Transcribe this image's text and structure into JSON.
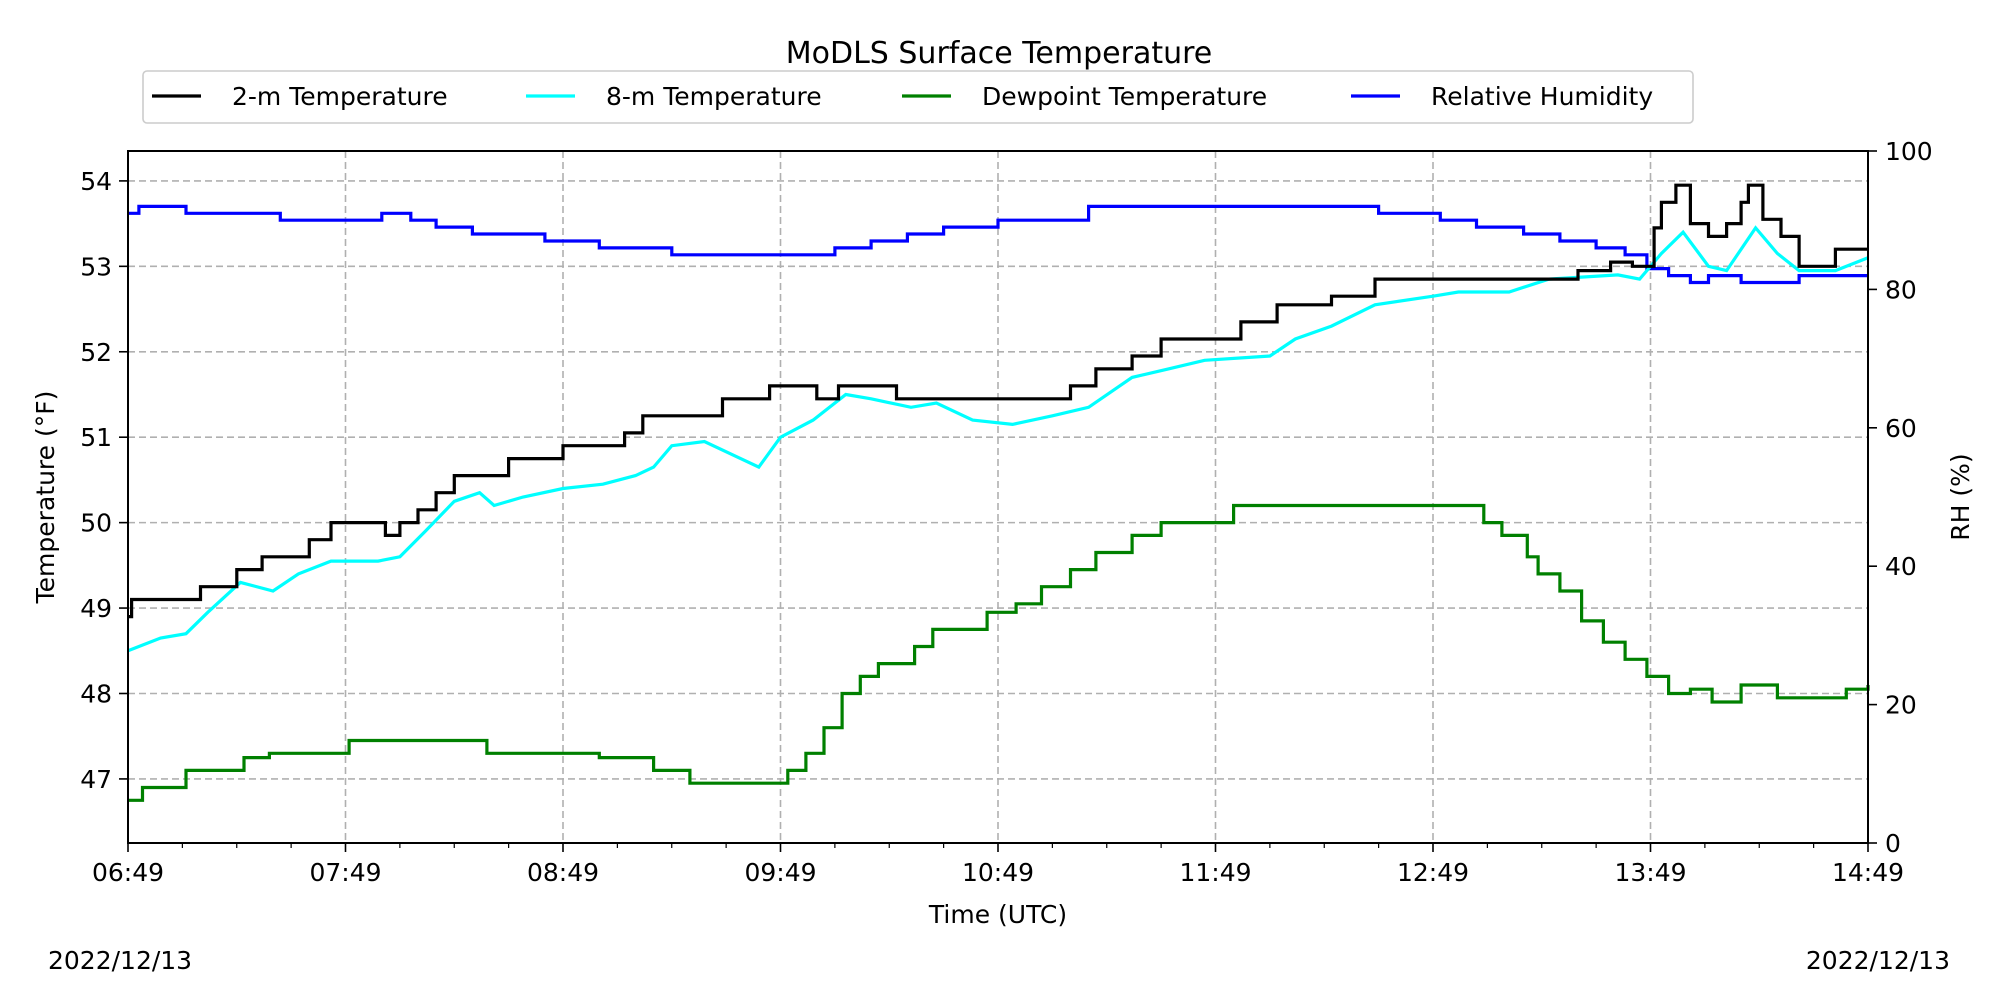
{
  "chart_data": {
    "type": "line",
    "title": "MoDLS Surface Temperature",
    "xlabel": "Time (UTC)",
    "ylabel_left": "Temperature (°F)",
    "ylabel_right": "RH (%)",
    "date_left": "2022/12/13",
    "date_right": "2022/12/13",
    "x_ticks": [
      "06:49",
      "07:49",
      "08:49",
      "09:49",
      "10:49",
      "11:49",
      "12:49",
      "13:49",
      "14:49"
    ],
    "ylim_left": [
      46.25,
      54.35
    ],
    "yticks_left": [
      47,
      48,
      49,
      50,
      51,
      52,
      53,
      54
    ],
    "ylim_right": [
      0,
      100
    ],
    "yticks_right": [
      0,
      20,
      40,
      60,
      80,
      100
    ],
    "grid": true,
    "legend_position": "top",
    "series": [
      {
        "name": "2-m Temperature",
        "axis": "left",
        "color": "#000000",
        "step": true,
        "points": [
          [
            "06:49",
            48.9
          ],
          [
            "06:50",
            49.1
          ],
          [
            "07:09",
            49.25
          ],
          [
            "07:19",
            49.45
          ],
          [
            "07:26",
            49.6
          ],
          [
            "07:39",
            49.8
          ],
          [
            "07:45",
            50.0
          ],
          [
            "08:00",
            49.85
          ],
          [
            "08:04",
            50.0
          ],
          [
            "08:09",
            50.15
          ],
          [
            "08:14",
            50.35
          ],
          [
            "08:19",
            50.55
          ],
          [
            "08:34",
            50.75
          ],
          [
            "08:49",
            50.9
          ],
          [
            "09:06",
            51.05
          ],
          [
            "09:11",
            51.25
          ],
          [
            "09:33",
            51.45
          ],
          [
            "09:46",
            51.6
          ],
          [
            "09:59",
            51.45
          ],
          [
            "10:05",
            51.6
          ],
          [
            "10:21",
            51.45
          ],
          [
            "11:09",
            51.6
          ],
          [
            "11:16",
            51.8
          ],
          [
            "11:26",
            51.95
          ],
          [
            "11:34",
            52.15
          ],
          [
            "11:56",
            52.35
          ],
          [
            "12:06",
            52.55
          ],
          [
            "12:21",
            52.65
          ],
          [
            "12:33",
            52.85
          ],
          [
            "12:46",
            52.85
          ],
          [
            "13:29",
            52.95
          ],
          [
            "13:38",
            53.05
          ],
          [
            "13:44",
            53.0
          ],
          [
            "13:50",
            53.45
          ],
          [
            "13:52",
            53.75
          ],
          [
            "13:56",
            53.95
          ],
          [
            "14:00",
            53.5
          ],
          [
            "14:05",
            53.35
          ],
          [
            "14:10",
            53.5
          ],
          [
            "14:14",
            53.75
          ],
          [
            "14:16",
            53.95
          ],
          [
            "14:20",
            53.55
          ],
          [
            "14:25",
            53.35
          ],
          [
            "14:30",
            53.0
          ],
          [
            "14:40",
            53.2
          ],
          [
            "14:49",
            53.2
          ]
        ]
      },
      {
        "name": "8-m Temperature",
        "axis": "left",
        "color": "#00ffff",
        "step": false,
        "points": [
          [
            "06:49",
            48.5
          ],
          [
            "06:58",
            48.65
          ],
          [
            "07:05",
            48.7
          ],
          [
            "07:11",
            48.95
          ],
          [
            "07:20",
            49.3
          ],
          [
            "07:29",
            49.2
          ],
          [
            "07:36",
            49.4
          ],
          [
            "07:45",
            49.55
          ],
          [
            "07:58",
            49.55
          ],
          [
            "08:04",
            49.6
          ],
          [
            "08:11",
            49.9
          ],
          [
            "08:19",
            50.25
          ],
          [
            "08:26",
            50.35
          ],
          [
            "08:30",
            50.2
          ],
          [
            "08:38",
            50.3
          ],
          [
            "08:49",
            50.4
          ],
          [
            "09:00",
            50.45
          ],
          [
            "09:09",
            50.55
          ],
          [
            "09:14",
            50.65
          ],
          [
            "09:19",
            50.9
          ],
          [
            "09:28",
            50.95
          ],
          [
            "09:38",
            50.75
          ],
          [
            "09:43",
            50.65
          ],
          [
            "09:49",
            51.0
          ],
          [
            "09:58",
            51.2
          ],
          [
            "10:07",
            51.5
          ],
          [
            "10:14",
            51.45
          ],
          [
            "10:25",
            51.35
          ],
          [
            "10:32",
            51.4
          ],
          [
            "10:42",
            51.2
          ],
          [
            "10:53",
            51.15
          ],
          [
            "11:04",
            51.25
          ],
          [
            "11:14",
            51.35
          ],
          [
            "11:26",
            51.7
          ],
          [
            "11:36",
            51.8
          ],
          [
            "11:46",
            51.9
          ],
          [
            "12:04",
            51.95
          ],
          [
            "12:11",
            52.15
          ],
          [
            "12:21",
            52.3
          ],
          [
            "12:33",
            52.55
          ],
          [
            "12:49",
            52.65
          ],
          [
            "12:56",
            52.7
          ],
          [
            "13:10",
            52.7
          ],
          [
            "13:21",
            52.85
          ],
          [
            "13:40",
            52.9
          ],
          [
            "13:46",
            52.85
          ],
          [
            "13:52",
            53.15
          ],
          [
            "13:58",
            53.4
          ],
          [
            "14:05",
            53.0
          ],
          [
            "14:10",
            52.95
          ],
          [
            "14:18",
            53.45
          ],
          [
            "14:24",
            53.15
          ],
          [
            "14:30",
            52.95
          ],
          [
            "14:40",
            52.95
          ],
          [
            "14:49",
            53.1
          ]
        ]
      },
      {
        "name": "Dewpoint Temperature",
        "axis": "left",
        "color": "#008000",
        "step": true,
        "points": [
          [
            "06:49",
            46.75
          ],
          [
            "06:53",
            46.9
          ],
          [
            "07:05",
            47.1
          ],
          [
            "07:15",
            47.1
          ],
          [
            "07:21",
            47.25
          ],
          [
            "07:28",
            47.3
          ],
          [
            "07:50",
            47.45
          ],
          [
            "08:14",
            47.45
          ],
          [
            "08:28",
            47.3
          ],
          [
            "08:59",
            47.25
          ],
          [
            "09:14",
            47.1
          ],
          [
            "09:24",
            46.95
          ],
          [
            "09:36",
            46.95
          ],
          [
            "09:51",
            47.1
          ],
          [
            "09:56",
            47.3
          ],
          [
            "10:01",
            47.6
          ],
          [
            "10:06",
            48.0
          ],
          [
            "10:11",
            48.2
          ],
          [
            "10:16",
            48.35
          ],
          [
            "10:26",
            48.55
          ],
          [
            "10:31",
            48.75
          ],
          [
            "10:42",
            48.75
          ],
          [
            "10:46",
            48.95
          ],
          [
            "10:54",
            49.05
          ],
          [
            "11:01",
            49.25
          ],
          [
            "11:09",
            49.45
          ],
          [
            "11:16",
            49.65
          ],
          [
            "11:26",
            49.85
          ],
          [
            "11:34",
            50.0
          ],
          [
            "11:46",
            50.0
          ],
          [
            "11:54",
            50.2
          ],
          [
            "12:11",
            50.2
          ],
          [
            "12:59",
            50.2
          ],
          [
            "13:03",
            50.0
          ],
          [
            "13:08",
            49.85
          ],
          [
            "13:15",
            49.6
          ],
          [
            "13:18",
            49.4
          ],
          [
            "13:24",
            49.2
          ],
          [
            "13:30",
            48.85
          ],
          [
            "13:36",
            48.6
          ],
          [
            "13:42",
            48.4
          ],
          [
            "13:48",
            48.2
          ],
          [
            "13:54",
            48.0
          ],
          [
            "14:00",
            48.05
          ],
          [
            "14:06",
            47.9
          ],
          [
            "14:14",
            48.1
          ],
          [
            "14:24",
            47.95
          ],
          [
            "14:34",
            47.95
          ],
          [
            "14:43",
            48.05
          ],
          [
            "14:49",
            48.1
          ]
        ]
      },
      {
        "name": "Relative Humidity",
        "axis": "right",
        "color": "#0000ff",
        "step": true,
        "points": [
          [
            "06:49",
            91
          ],
          [
            "06:52",
            92
          ],
          [
            "07:05",
            91
          ],
          [
            "07:31",
            90
          ],
          [
            "07:59",
            91
          ],
          [
            "08:07",
            90
          ],
          [
            "08:14",
            89
          ],
          [
            "08:24",
            88
          ],
          [
            "08:44",
            87
          ],
          [
            "08:59",
            86
          ],
          [
            "09:19",
            85
          ],
          [
            "09:59",
            85
          ],
          [
            "10:04",
            86
          ],
          [
            "10:14",
            87
          ],
          [
            "10:24",
            88
          ],
          [
            "10:34",
            89
          ],
          [
            "10:49",
            90
          ],
          [
            "11:14",
            92
          ],
          [
            "11:49",
            92
          ],
          [
            "12:24",
            92
          ],
          [
            "12:34",
            91
          ],
          [
            "12:51",
            90
          ],
          [
            "13:01",
            89
          ],
          [
            "13:14",
            88
          ],
          [
            "13:24",
            87
          ],
          [
            "13:34",
            86
          ],
          [
            "13:42",
            85
          ],
          [
            "13:48",
            83
          ],
          [
            "13:54",
            82
          ],
          [
            "14:00",
            81
          ],
          [
            "14:05",
            82
          ],
          [
            "14:14",
            81
          ],
          [
            "14:30",
            82
          ],
          [
            "14:49",
            82
          ]
        ]
      }
    ]
  }
}
